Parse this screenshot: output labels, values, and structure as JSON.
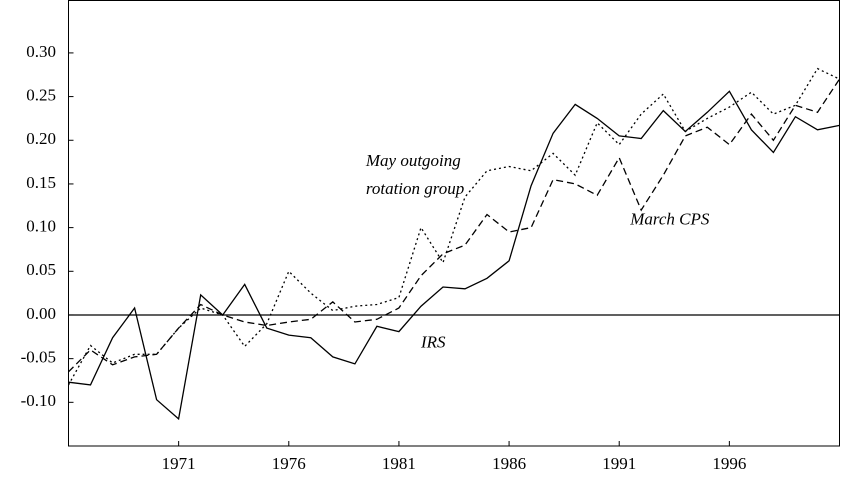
{
  "chart_data": {
    "type": "line",
    "x": [
      1966,
      1967,
      1968,
      1969,
      1970,
      1971,
      1972,
      1973,
      1974,
      1975,
      1976,
      1977,
      1978,
      1979,
      1980,
      1981,
      1982,
      1983,
      1984,
      1985,
      1986,
      1987,
      1988,
      1989,
      1990,
      1991,
      1992,
      1993,
      1994,
      1995,
      1996,
      1997,
      1998,
      1999,
      2000,
      2001
    ],
    "series": [
      {
        "style": "solid",
        "color": "#000000",
        "values": [
          -0.077,
          -0.08,
          -0.026,
          0.008,
          -0.097,
          -0.119,
          0.023,
          0.0,
          0.035,
          -0.015,
          -0.023,
          -0.026,
          -0.048,
          -0.056,
          -0.013,
          -0.019,
          0.01,
          0.032,
          0.03,
          0.042,
          0.062,
          0.148,
          0.208,
          0.241,
          0.225,
          0.205,
          0.202,
          0.234,
          0.21,
          0.232,
          0.256,
          0.212,
          0.186,
          0.227,
          0.212,
          0.217
        ]
      },
      {
        "style": "dashed",
        "color": "#000000",
        "values": [
          -0.065,
          -0.04,
          -0.057,
          -0.048,
          -0.045,
          -0.015,
          0.012,
          0.0,
          -0.008,
          -0.012,
          -0.008,
          -0.005,
          0.015,
          -0.008,
          -0.005,
          0.008,
          0.045,
          0.07,
          0.08,
          0.115,
          0.095,
          0.1,
          0.155,
          0.15,
          0.137,
          0.18,
          0.12,
          0.16,
          0.205,
          0.215,
          0.195,
          0.23,
          0.2,
          0.24,
          0.232,
          0.27
        ]
      },
      {
        "style": "dotted",
        "color": "#000000",
        "values": [
          -0.08,
          -0.035,
          -0.055,
          -0.045,
          -0.045,
          -0.015,
          0.008,
          0.0,
          -0.036,
          -0.01,
          0.05,
          0.025,
          0.005,
          0.01,
          0.012,
          0.02,
          0.1,
          0.06,
          0.135,
          0.165,
          0.17,
          0.165,
          0.185,
          0.16,
          0.22,
          0.195,
          0.23,
          0.253,
          0.21,
          0.225,
          0.238,
          0.255,
          0.23,
          0.24,
          0.282,
          0.27
        ]
      }
    ],
    "annotations": [
      {
        "text": "May outgoing",
        "x": 1979.5,
        "y": 0.175
      },
      {
        "text": "rotation group",
        "x": 1979.5,
        "y": 0.143
      },
      {
        "text": "March CPS",
        "x": 1991.5,
        "y": 0.108
      },
      {
        "text": "IRS",
        "x": 1982,
        "y": -0.033
      }
    ],
    "xlim": [
      1966,
      2001
    ],
    "xticks": [
      1971,
      1976,
      1981,
      1986,
      1991,
      1996
    ],
    "ylim": [
      -0.15,
      0.36
    ],
    "yticks": [
      {
        "value": -0.1,
        "label": "-0.10"
      },
      {
        "value": -0.05,
        "label": "-0.05"
      },
      {
        "value": 0,
        "label": "0.00"
      },
      {
        "value": 0.05,
        "label": "0.05"
      },
      {
        "value": 0.1,
        "label": "0.10"
      },
      {
        "value": 0.15,
        "label": "0.15"
      },
      {
        "value": 0.2,
        "label": "0.20"
      },
      {
        "value": 0.25,
        "label": "0.25"
      },
      {
        "value": 0.3,
        "label": "0.30"
      }
    ],
    "zero_line": true
  }
}
